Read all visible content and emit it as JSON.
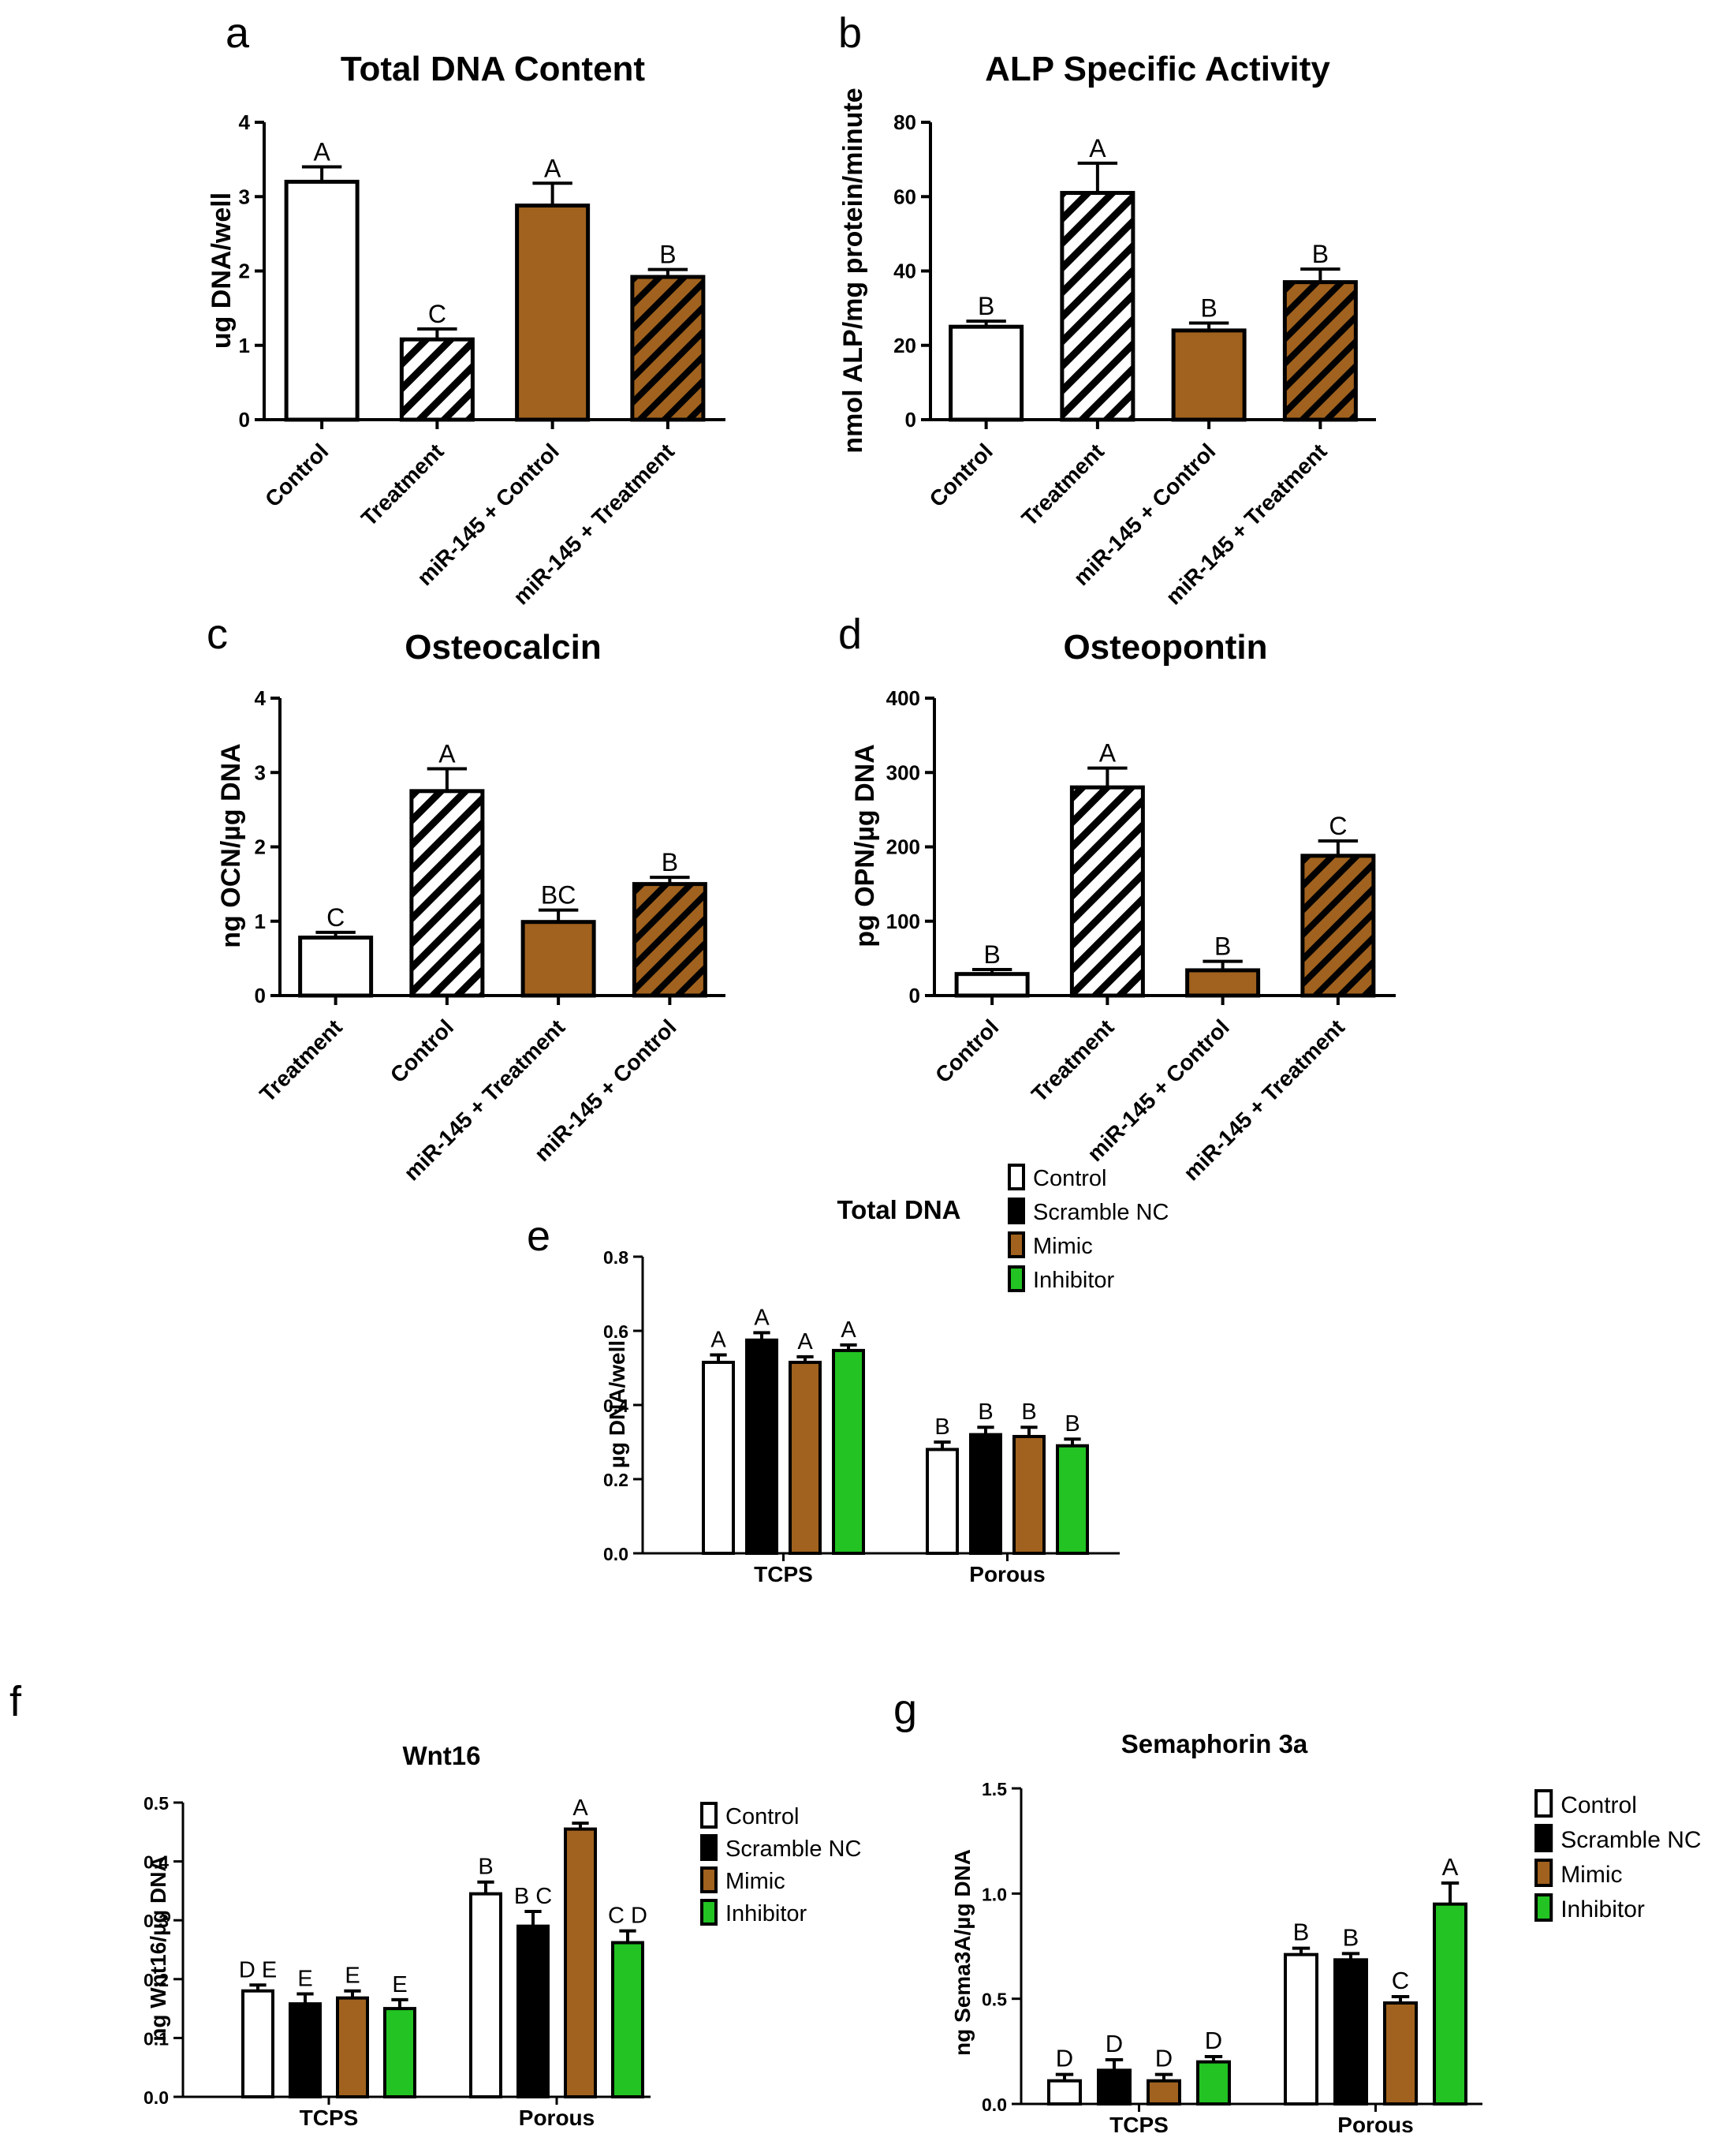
{
  "colors": {
    "white": "#ffffff",
    "black": "#000000",
    "brown": "#a0621e",
    "green": "#22c322"
  },
  "chart_data": [
    {
      "id": "a",
      "panel_label": "a",
      "type": "bar",
      "title": "Total DNA Content",
      "ylabel": "ug DNA/well",
      "ylim": [
        0,
        4
      ],
      "yticks": [
        "0",
        "1",
        "2",
        "3",
        "4"
      ],
      "categories": [
        "Control",
        "Treatment",
        "miR-145 + Control",
        "miR-145 + Treatment"
      ],
      "values": [
        3.2,
        1.08,
        2.88,
        1.92
      ],
      "errors": [
        0.2,
        0.14,
        0.3,
        0.1
      ],
      "letters": [
        "A",
        "C",
        "A",
        "B"
      ],
      "fills": [
        "white",
        "white-hatch",
        "brown",
        "brown-hatch"
      ]
    },
    {
      "id": "b",
      "panel_label": "b",
      "type": "bar",
      "title": "ALP Specific Activity",
      "ylabel": "nmol ALP/mg protein/minute",
      "ylim": [
        0,
        80
      ],
      "yticks": [
        "0",
        "20",
        "40",
        "60",
        "80"
      ],
      "categories": [
        "Control",
        "Treatment",
        "miR-145 + Control",
        "miR-145 + Treatment"
      ],
      "values": [
        25,
        61,
        24,
        37
      ],
      "errors": [
        1.5,
        8,
        2,
        3.5
      ],
      "letters": [
        "B",
        "A",
        "B",
        "B"
      ],
      "fills": [
        "white",
        "white-hatch",
        "brown",
        "brown-hatch"
      ]
    },
    {
      "id": "c",
      "panel_label": "c",
      "type": "bar",
      "title": "Osteocalcin",
      "ylabel": "ng OCN/µg DNA",
      "ylim": [
        0,
        4
      ],
      "yticks": [
        "0",
        "1",
        "2",
        "3",
        "4"
      ],
      "categories": [
        "Treatment",
        "Control",
        "miR-145 + Treatment",
        "miR-145 + Control"
      ],
      "values": [
        0.78,
        2.75,
        0.99,
        1.5
      ],
      "errors": [
        0.07,
        0.3,
        0.16,
        0.09
      ],
      "letters": [
        "C",
        "A",
        "BC",
        "B"
      ],
      "fills": [
        "white",
        "white-hatch",
        "brown",
        "brown-hatch"
      ]
    },
    {
      "id": "d",
      "panel_label": "d",
      "type": "bar",
      "title": "Osteopontin",
      "ylabel": "pg OPN/µg DNA",
      "ylim": [
        0,
        400
      ],
      "yticks": [
        "0",
        "100",
        "200",
        "300",
        "400"
      ],
      "categories": [
        "Control",
        "Treatment",
        "miR-145 + Control",
        "miR-145 + Treatment"
      ],
      "values": [
        29,
        280,
        34,
        188
      ],
      "errors": [
        6,
        26,
        12,
        20
      ],
      "letters": [
        "B",
        "A",
        "B",
        "C"
      ],
      "fills": [
        "white",
        "white-hatch",
        "brown",
        "brown-hatch"
      ]
    },
    {
      "id": "e",
      "panel_label": "e",
      "type": "bar",
      "title": "Total DNA",
      "ylabel": "µg DNA/well",
      "ylim": [
        0,
        0.8
      ],
      "yticks": [
        "0.0",
        "0.2",
        "0.4",
        "0.6",
        "0.8"
      ],
      "categories": [
        "TCPS",
        "Porous"
      ],
      "series": [
        {
          "name": "Control",
          "color": "white",
          "values": [
            0.515,
            0.28
          ],
          "errors": [
            0.02,
            0.02
          ],
          "letters": [
            "A",
            "B"
          ]
        },
        {
          "name": "Scramble NC",
          "color": "black",
          "values": [
            0.575,
            0.32
          ],
          "errors": [
            0.02,
            0.02
          ],
          "letters": [
            "A",
            "B"
          ]
        },
        {
          "name": "Mimic",
          "color": "brown",
          "values": [
            0.515,
            0.315
          ],
          "errors": [
            0.015,
            0.025
          ],
          "letters": [
            "A",
            "B"
          ]
        },
        {
          "name": "Inhibitor",
          "color": "green",
          "values": [
            0.547,
            0.29
          ],
          "errors": [
            0.015,
            0.018
          ],
          "letters": [
            "A",
            "B"
          ]
        }
      ]
    },
    {
      "id": "f",
      "panel_label": "f",
      "type": "bar",
      "title": "Wnt16",
      "ylabel": "ng Wnt16/µg DNA",
      "ylim": [
        0,
        0.5
      ],
      "yticks": [
        "0.0",
        "0.1",
        "0.2",
        "0.3",
        "0.4",
        "0.5"
      ],
      "categories": [
        "TCPS",
        "Porous"
      ],
      "series": [
        {
          "name": "Control",
          "color": "white",
          "values": [
            0.18,
            0.345
          ],
          "errors": [
            0.01,
            0.02
          ],
          "letters": [
            "D E",
            "B"
          ]
        },
        {
          "name": "Scramble NC",
          "color": "black",
          "values": [
            0.158,
            0.29
          ],
          "errors": [
            0.017,
            0.025
          ],
          "letters": [
            "E",
            "B C"
          ]
        },
        {
          "name": "Mimic",
          "color": "brown",
          "values": [
            0.168,
            0.455
          ],
          "errors": [
            0.012,
            0.01
          ],
          "letters": [
            "E",
            "A"
          ]
        },
        {
          "name": "Inhibitor",
          "color": "green",
          "values": [
            0.15,
            0.262
          ],
          "errors": [
            0.015,
            0.02
          ],
          "letters": [
            "E",
            "C D"
          ]
        }
      ]
    },
    {
      "id": "g",
      "panel_label": "g",
      "type": "bar",
      "title": "Semaphorin 3a",
      "ylabel": "ng Sema3A/µg DNA",
      "ylim": [
        0,
        1.5
      ],
      "yticks": [
        "0.0",
        "0.5",
        "1.0",
        "1.5"
      ],
      "categories": [
        "TCPS",
        "Porous"
      ],
      "series": [
        {
          "name": "Control",
          "color": "white",
          "values": [
            0.11,
            0.71
          ],
          "errors": [
            0.03,
            0.03
          ],
          "letters": [
            "D",
            "B"
          ]
        },
        {
          "name": "Scramble NC",
          "color": "black",
          "values": [
            0.16,
            0.685
          ],
          "errors": [
            0.05,
            0.03
          ],
          "letters": [
            "D",
            "B"
          ]
        },
        {
          "name": "Mimic",
          "color": "brown",
          "values": [
            0.11,
            0.48
          ],
          "errors": [
            0.03,
            0.03
          ],
          "letters": [
            "D",
            "C"
          ]
        },
        {
          "name": "Inhibitor",
          "color": "green",
          "values": [
            0.2,
            0.95
          ],
          "errors": [
            0.025,
            0.1
          ],
          "letters": [
            "D",
            "A"
          ]
        }
      ]
    }
  ]
}
